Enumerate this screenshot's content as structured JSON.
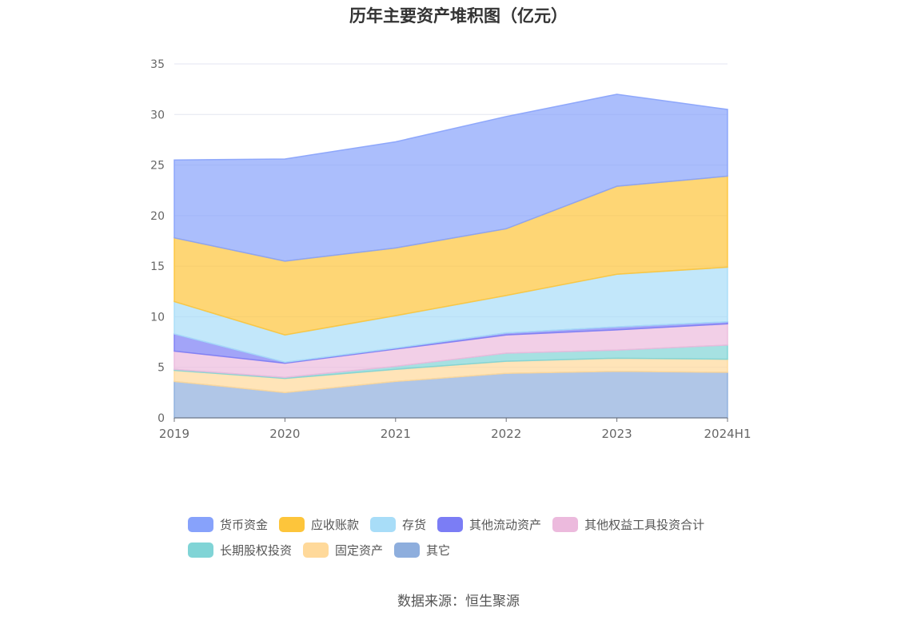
{
  "chart_data": {
    "type": "area",
    "title": "历年主要资产堆积图（亿元）",
    "categories": [
      "2019",
      "2020",
      "2021",
      "2022",
      "2023",
      "2024H1"
    ],
    "ylim": [
      0,
      35
    ],
    "yticks": [
      0,
      5,
      10,
      15,
      20,
      25,
      30,
      35
    ],
    "stacked": true,
    "grid": true,
    "legend_position": "bottom",
    "series": [
      {
        "name": "其它",
        "color": "#8eaedd",
        "values": [
          3.6,
          2.5,
          3.6,
          4.4,
          4.6,
          4.5
        ]
      },
      {
        "name": "固定资产",
        "color": "#ffd99a",
        "values": [
          1.1,
          1.4,
          1.2,
          1.2,
          1.3,
          1.3
        ]
      },
      {
        "name": "长期股权投资",
        "color": "#80d4d6",
        "values": [
          0.1,
          0.1,
          0.3,
          0.8,
          0.8,
          1.4
        ]
      },
      {
        "name": "其他权益工具投资合计",
        "color": "#ecbadd",
        "values": [
          1.8,
          1.4,
          1.7,
          1.8,
          2.0,
          2.1
        ]
      },
      {
        "name": "其他流动资产",
        "color": "#7b7df5",
        "values": [
          1.7,
          0.1,
          0.1,
          0.2,
          0.3,
          0.2
        ]
      },
      {
        "name": "存货",
        "color": "#a8ddf8",
        "values": [
          3.2,
          2.7,
          3.2,
          3.7,
          5.2,
          5.4
        ]
      },
      {
        "name": "应收账款",
        "color": "#fdc53b",
        "values": [
          6.3,
          7.3,
          6.7,
          6.6,
          8.7,
          9.0
        ]
      },
      {
        "name": "货币资金",
        "color": "#87a2fb",
        "values": [
          7.7,
          10.1,
          10.5,
          11.1,
          9.1,
          6.6
        ]
      }
    ],
    "legend_order": [
      "货币资金",
      "应收账款",
      "存货",
      "其他流动资产",
      "其他权益工具投资合计",
      "长期股权投资",
      "固定资产",
      "其它"
    ]
  },
  "source": "数据来源：恒生聚源"
}
